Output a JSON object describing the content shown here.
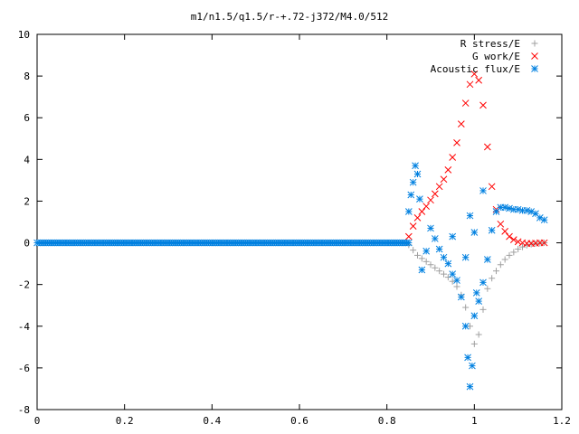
{
  "chart_data": {
    "type": "scatter",
    "title": "m1/n1.5/q1.5/r-+.72-j372/M4.0/512",
    "xlabel": "",
    "ylabel": "",
    "xlim": [
      0,
      1.2
    ],
    "ylim": [
      -8,
      10
    ],
    "x_ticks": [
      "0",
      "0.2",
      "0.4",
      "0.6",
      "0.8",
      "1",
      "1.2"
    ],
    "y_ticks": [
      "10",
      "8",
      "6",
      "4",
      "2",
      "0",
      "-2",
      "-4",
      "-6",
      "-8"
    ],
    "grid": false,
    "legend_position": "top-right",
    "series": [
      {
        "name": "R stress/E",
        "marker": "+",
        "color": "#a0a0a0",
        "points": [
          [
            0.85,
            -0.1
          ],
          [
            0.86,
            -0.35
          ],
          [
            0.87,
            -0.6
          ],
          [
            0.88,
            -0.75
          ],
          [
            0.89,
            -0.9
          ],
          [
            0.9,
            -1.05
          ],
          [
            0.91,
            -1.2
          ],
          [
            0.92,
            -1.35
          ],
          [
            0.93,
            -1.5
          ],
          [
            0.94,
            -1.65
          ],
          [
            0.95,
            -1.85
          ],
          [
            0.96,
            -2.1
          ],
          [
            0.97,
            -2.5
          ],
          [
            0.98,
            -3.1
          ],
          [
            0.99,
            -4.0
          ],
          [
            1.0,
            -4.85
          ],
          [
            1.01,
            -4.4
          ],
          [
            1.02,
            -3.2
          ],
          [
            1.03,
            -2.2
          ],
          [
            1.04,
            -1.7
          ],
          [
            1.05,
            -1.35
          ],
          [
            1.06,
            -1.05
          ],
          [
            1.07,
            -0.8
          ],
          [
            1.08,
            -0.6
          ],
          [
            1.09,
            -0.45
          ],
          [
            1.1,
            -0.3
          ],
          [
            1.11,
            -0.2
          ],
          [
            1.12,
            -0.12
          ],
          [
            1.13,
            -0.07
          ],
          [
            1.14,
            -0.04
          ],
          [
            1.15,
            -0.02
          ],
          [
            1.16,
            0
          ]
        ]
      },
      {
        "name": "G work/E",
        "marker": "x",
        "color": "#ff0000",
        "points": [
          [
            0.85,
            0.3
          ],
          [
            0.86,
            0.8
          ],
          [
            0.87,
            1.2
          ],
          [
            0.88,
            1.5
          ],
          [
            0.89,
            1.75
          ],
          [
            0.9,
            2.05
          ],
          [
            0.91,
            2.35
          ],
          [
            0.92,
            2.7
          ],
          [
            0.93,
            3.05
          ],
          [
            0.94,
            3.5
          ],
          [
            0.95,
            4.1
          ],
          [
            0.96,
            4.8
          ],
          [
            0.97,
            5.7
          ],
          [
            0.98,
            6.7
          ],
          [
            0.99,
            7.6
          ],
          [
            1.0,
            8.1
          ],
          [
            1.01,
            7.8
          ],
          [
            1.02,
            6.6
          ],
          [
            1.03,
            4.6
          ],
          [
            1.04,
            2.7
          ],
          [
            1.05,
            1.6
          ],
          [
            1.06,
            0.9
          ],
          [
            1.07,
            0.55
          ],
          [
            1.08,
            0.3
          ],
          [
            1.09,
            0.15
          ],
          [
            1.1,
            0.05
          ],
          [
            1.11,
            0
          ],
          [
            1.12,
            -0.03
          ],
          [
            1.13,
            -0.03
          ],
          [
            1.14,
            -0.02
          ],
          [
            1.15,
            0
          ],
          [
            1.16,
            0
          ]
        ]
      },
      {
        "name": "Acoustic flux/E",
        "marker": "*",
        "color": "#0080e0",
        "points": [
          [
            0.85,
            1.5
          ],
          [
            0.855,
            2.3
          ],
          [
            0.86,
            2.9
          ],
          [
            0.865,
            3.7
          ],
          [
            0.87,
            3.3
          ],
          [
            0.875,
            2.1
          ],
          [
            0.88,
            -1.3
          ],
          [
            0.89,
            -0.4
          ],
          [
            0.9,
            0.7
          ],
          [
            0.91,
            0.2
          ],
          [
            0.92,
            -0.3
          ],
          [
            0.93,
            -0.7
          ],
          [
            0.94,
            -1.0
          ],
          [
            0.95,
            -1.5
          ],
          [
            0.96,
            -1.8
          ],
          [
            0.97,
            -2.6
          ],
          [
            0.98,
            -4.0
          ],
          [
            0.985,
            -5.5
          ],
          [
            0.99,
            -6.9
          ],
          [
            0.995,
            -5.9
          ],
          [
            1.0,
            -3.5
          ],
          [
            1.005,
            -2.4
          ],
          [
            1.01,
            -2.8
          ],
          [
            1.02,
            -1.9
          ],
          [
            1.03,
            -0.8
          ],
          [
            1.04,
            0.6
          ],
          [
            1.05,
            1.5
          ],
          [
            1.06,
            1.7
          ],
          [
            1.07,
            1.7
          ],
          [
            1.08,
            1.65
          ],
          [
            1.09,
            1.6
          ],
          [
            1.1,
            1.6
          ],
          [
            1.11,
            1.55
          ],
          [
            1.12,
            1.55
          ],
          [
            1.13,
            1.5
          ],
          [
            1.14,
            1.4
          ],
          [
            1.15,
            1.2
          ],
          [
            1.16,
            1.1
          ],
          [
            0.99,
            1.3
          ],
          [
            1.0,
            0.5
          ],
          [
            0.98,
            -0.7
          ],
          [
            1.02,
            2.5
          ],
          [
            0.95,
            0.3
          ]
        ],
        "baseline": {
          "from": 0,
          "to": 0.85,
          "value": 0
        }
      }
    ]
  }
}
